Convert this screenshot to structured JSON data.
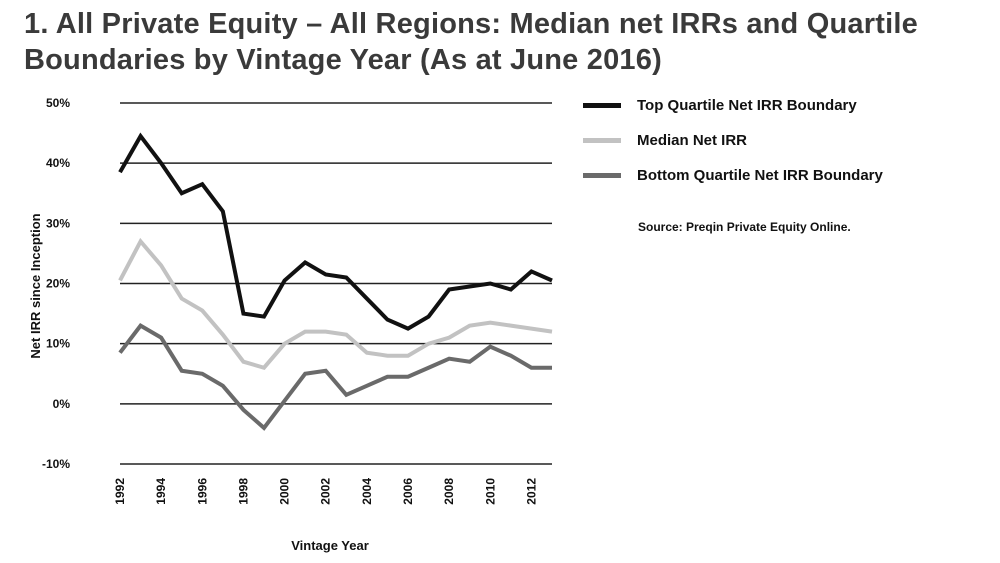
{
  "title_line1": "1. All Private Equity – All Regions: Median net IRRs and Quartile",
  "title_line2": "Boundaries by Vintage Year (As at June 2016)",
  "source": "Source: Preqin Private Equity Online.",
  "chart_data": {
    "type": "line",
    "xlabel": "Vintage Year",
    "ylabel": "Net IRR since Inception",
    "x": [
      1992,
      1993,
      1994,
      1995,
      1996,
      1997,
      1998,
      1999,
      2000,
      2001,
      2002,
      2003,
      2004,
      2005,
      2006,
      2007,
      2008,
      2009,
      2010,
      2011,
      2012,
      2013
    ],
    "x_tick_labels": [
      "1992",
      "1994",
      "1996",
      "1998",
      "2000",
      "2002",
      "2004",
      "2006",
      "2008",
      "2010",
      "2012"
    ],
    "y_tick_values": [
      50,
      40,
      30,
      20,
      10,
      0,
      -10
    ],
    "y_tick_labels": [
      "50%",
      "40%",
      "30%",
      "20%",
      "10%",
      "0%",
      "-10%"
    ],
    "ylim": [
      -10,
      50
    ],
    "grid": "horizontal",
    "legend_placement": "right",
    "series": [
      {
        "name": "Top Quartile Net IRR Boundary",
        "color": "#111111",
        "values": [
          38.5,
          44.5,
          40,
          35,
          36.5,
          32,
          15,
          14.5,
          20.5,
          23.5,
          21.5,
          21,
          17.5,
          14,
          12.5,
          14.5,
          19,
          19.5,
          20,
          19,
          22,
          20.5
        ]
      },
      {
        "name": "Median Net IRR",
        "color": "#c2c2c2",
        "values": [
          20.5,
          27,
          23,
          17.5,
          15.5,
          11.5,
          7,
          6,
          10,
          12,
          12,
          11.5,
          8.5,
          8,
          8,
          10,
          11,
          13,
          13.5,
          13,
          12.5,
          12
        ]
      },
      {
        "name": "Bottom Quartile Net IRR Boundary",
        "color": "#6a6a6a",
        "values": [
          8.5,
          13,
          11,
          5.5,
          5,
          3,
          -1,
          -4,
          0.5,
          5,
          5.5,
          1.5,
          3,
          4.5,
          4.5,
          6,
          7.5,
          7,
          9.5,
          8,
          6,
          6
        ]
      }
    ]
  }
}
